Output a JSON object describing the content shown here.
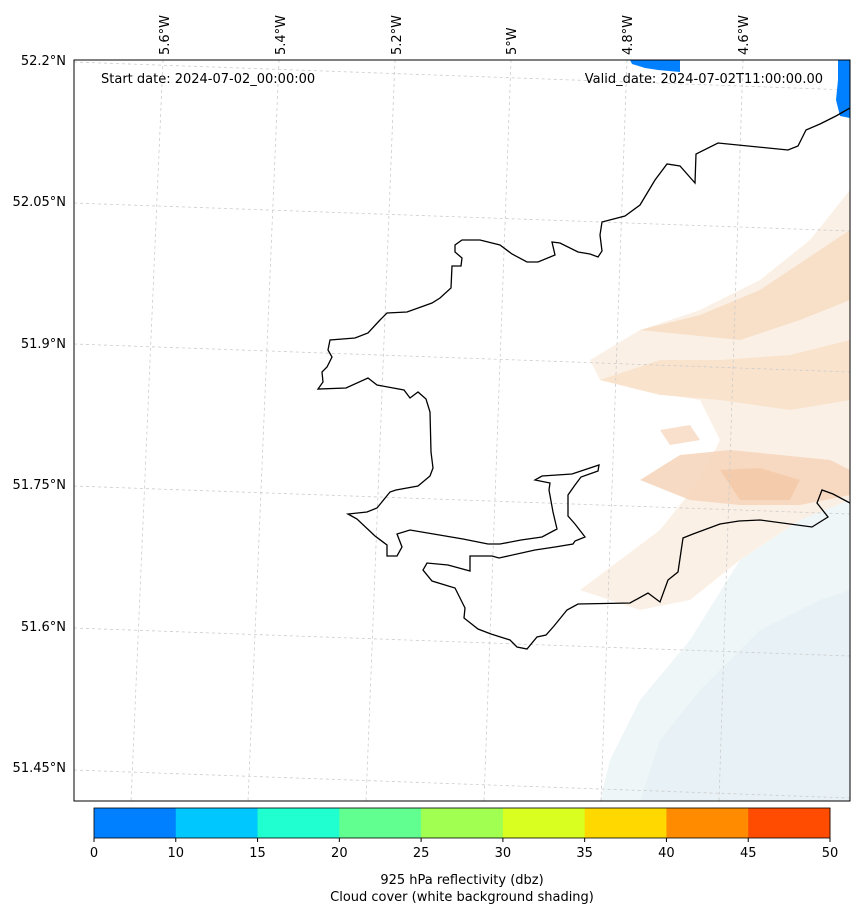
{
  "header": {
    "start_date": "Start date: 2024-07-02_00:00:00",
    "valid_date": "Valid_date: 2024-07-02T11:00:00.00"
  },
  "longitude_labels": [
    "5.6°W",
    "5.4°W",
    "5.2°W",
    "5°W",
    "4.8°W",
    "4.6°W"
  ],
  "latitude_labels": [
    "52.2°N",
    "52.05°N",
    "51.9°N",
    "51.75°N",
    "51.6°N",
    "51.45°N"
  ],
  "colorbar": {
    "ticks": [
      "0",
      "10",
      "15",
      "20",
      "25",
      "30",
      "35",
      "40",
      "45",
      "50"
    ],
    "colors": [
      "#0080ff",
      "#00c8ff",
      "#20ffd0",
      "#60ff90",
      "#a0ff50",
      "#d8ff20",
      "#ffd800",
      "#ff8c00",
      "#ff4c00"
    ],
    "caption_line1": "925 hPa reflectivity (dbz)",
    "caption_line2": "Cloud cover (white background shading)"
  },
  "map": {
    "coastline_color": "#000000",
    "gridline_color": "#cccccc",
    "reflectivity_patch_color": "#0080ff",
    "warm_shading_color": "#f9dcc4",
    "cool_shading_color": "#e6f1f4"
  }
}
